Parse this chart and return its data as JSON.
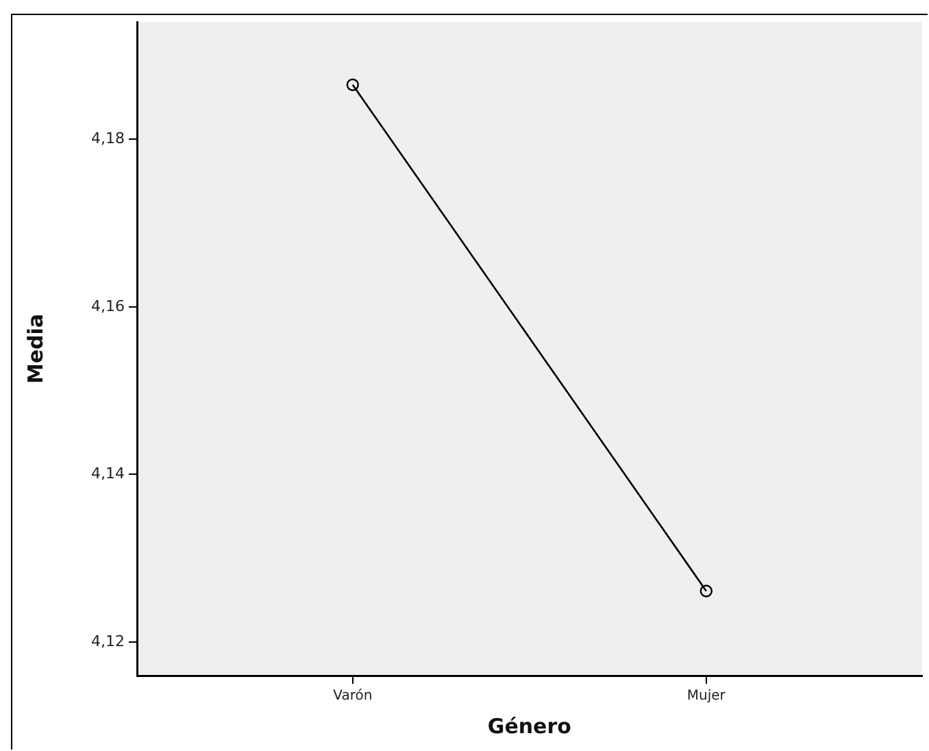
{
  "chart_data": {
    "type": "line",
    "xlabel": "Género",
    "ylabel": "Media",
    "categories": [
      "Varón",
      "Mujer"
    ],
    "series": [
      {
        "color": "#000000",
        "values": [
          4.1865,
          4.1261
        ]
      }
    ],
    "ylim": [
      4.116,
      4.194
    ],
    "yticks": [
      {
        "value": 4.12,
        "label": "4,12"
      },
      {
        "value": 4.14,
        "label": "4,14"
      },
      {
        "value": 4.16,
        "label": "4,16"
      },
      {
        "value": 4.18,
        "label": "4,18"
      }
    ],
    "grid": false,
    "legend": false,
    "marker": "circle",
    "line_style": "solid"
  }
}
